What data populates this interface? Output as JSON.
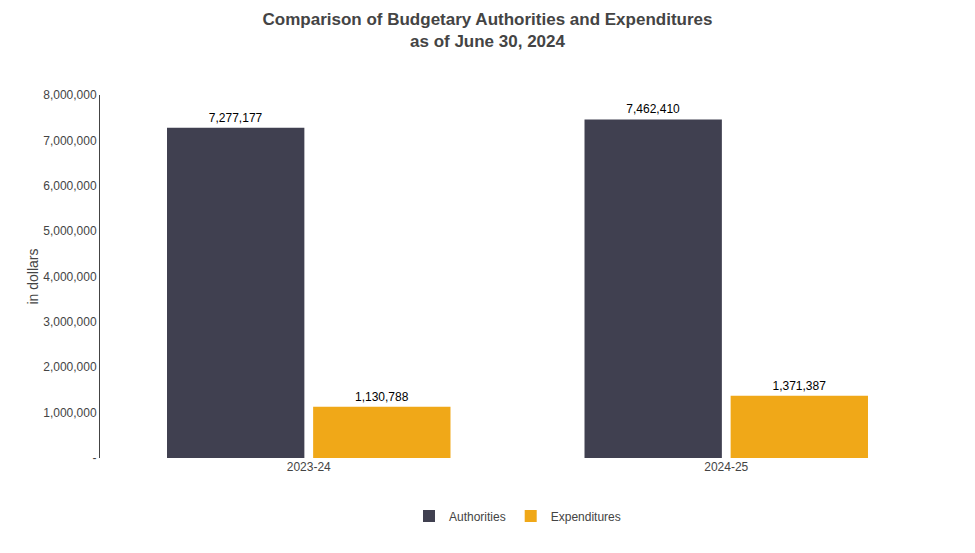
{
  "chart_data": {
    "type": "bar",
    "title": "Comparison of Budgetary Authorities and Expenditures",
    "subtitle": "as of June 30, 2024",
    "categories": [
      "2023-24",
      "2024-25"
    ],
    "series": [
      {
        "name": "Authorities",
        "color": "#404050",
        "values": [
          7277177,
          7462410
        ],
        "value_labels": [
          "7,277,177",
          "7,462,410"
        ]
      },
      {
        "name": "Expenditures",
        "color": "#f0a818",
        "values": [
          1130788,
          1371387
        ],
        "value_labels": [
          "1,130,788",
          "1,371,387"
        ]
      }
    ],
    "ylabel": "in dollars",
    "ylim": [
      0,
      8000000
    ],
    "yticks": [
      {
        "value": 0,
        "label": "-"
      },
      {
        "value": 1000000,
        "label": "1,000,000"
      },
      {
        "value": 2000000,
        "label": "2,000,000"
      },
      {
        "value": 3000000,
        "label": "3,000,000"
      },
      {
        "value": 4000000,
        "label": "4,000,000"
      },
      {
        "value": 5000000,
        "label": "5,000,000"
      },
      {
        "value": 6000000,
        "label": "6,000,000"
      },
      {
        "value": 7000000,
        "label": "7,000,000"
      },
      {
        "value": 8000000,
        "label": "8,000,000"
      }
    ],
    "grid": false,
    "legend": "bottom",
    "data_labels": true
  }
}
